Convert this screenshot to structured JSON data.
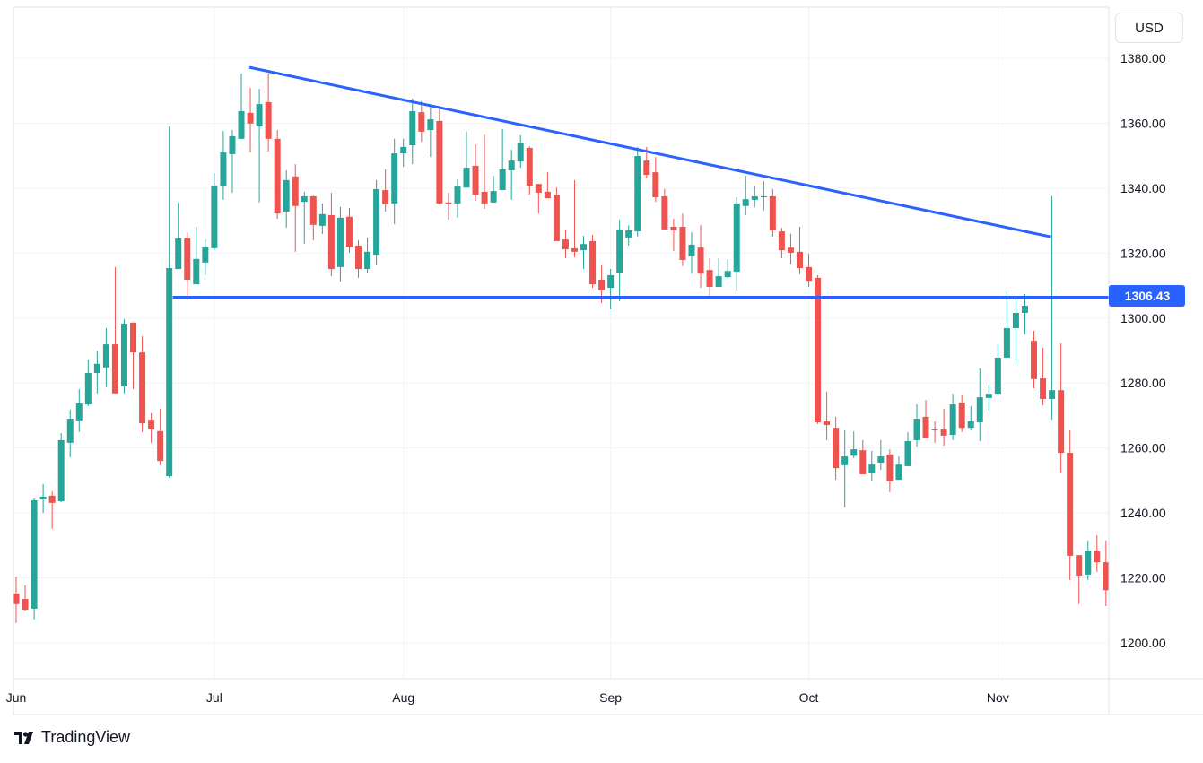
{
  "currency_button": "USD",
  "branding": "TradingView",
  "colors": {
    "up": "#26a69a",
    "down": "#ef5350",
    "drawing": "#2962ff",
    "grid": "#f0f3fa"
  },
  "chart_data": {
    "type": "candlestick",
    "ylim": [
      1190,
      1385
    ],
    "y_ticks": [
      "1200.00",
      "1220.00",
      "1240.00",
      "1260.00",
      "1280.00",
      "1300.00",
      "1320.00",
      "1340.00",
      "1360.00",
      "1380.00"
    ],
    "x_ticks": [
      {
        "label": "Jun",
        "candle": 0
      },
      {
        "label": "Jul",
        "candle": 22
      },
      {
        "label": "Aug",
        "candle": 43
      },
      {
        "label": "Sep",
        "candle": 66
      },
      {
        "label": "Oct",
        "candle": 88
      },
      {
        "label": "Nov",
        "candle": 109
      }
    ],
    "grid": true,
    "ohlc_fields": [
      "open",
      "high",
      "low",
      "close"
    ],
    "candles": [
      [
        1215.2,
        1220.4,
        1206.1,
        1211.9
      ],
      [
        1213.5,
        1217.7,
        1209.9,
        1210.2
      ],
      [
        1210.5,
        1244.7,
        1207.2,
        1243.9
      ],
      [
        1244.2,
        1248.9,
        1240.0,
        1245.0
      ],
      [
        1245.3,
        1246.6,
        1235.1,
        1243.1
      ],
      [
        1243.6,
        1264.6,
        1243.3,
        1262.4
      ],
      [
        1261.6,
        1271.8,
        1257.1,
        1269.0
      ],
      [
        1268.5,
        1278.1,
        1264.9,
        1273.7
      ],
      [
        1273.4,
        1287.2,
        1272.9,
        1283.1
      ],
      [
        1283.1,
        1290.0,
        1276.8,
        1285.9
      ],
      [
        1284.8,
        1296.9,
        1278.7,
        1291.9
      ],
      [
        1291.9,
        1315.7,
        1276.8,
        1276.8
      ],
      [
        1279.0,
        1299.7,
        1276.8,
        1298.3
      ],
      [
        1298.6,
        1298.6,
        1278.1,
        1289.4
      ],
      [
        1289.4,
        1294.4,
        1264.9,
        1267.6
      ],
      [
        1268.7,
        1270.7,
        1261.6,
        1265.7
      ],
      [
        1265.2,
        1272.1,
        1254.7,
        1256.0
      ],
      [
        1251.3,
        1359.0,
        1250.8,
        1315.4
      ],
      [
        1315.1,
        1335.6,
        1315.1,
        1324.5
      ],
      [
        1324.5,
        1326.4,
        1305.7,
        1311.8
      ],
      [
        1310.4,
        1328.1,
        1310.4,
        1318.2
      ],
      [
        1317.1,
        1324.2,
        1313.2,
        1321.8
      ],
      [
        1321.5,
        1344.7,
        1320.9,
        1340.8
      ],
      [
        1340.5,
        1357.6,
        1336.4,
        1351.0
      ],
      [
        1350.5,
        1357.9,
        1338.6,
        1356.0
      ],
      [
        1355.2,
        1375.3,
        1355.2,
        1363.7
      ],
      [
        1363.2,
        1370.9,
        1351.0,
        1359.9
      ],
      [
        1359.0,
        1370.6,
        1335.6,
        1365.9
      ],
      [
        1366.5,
        1375.3,
        1351.3,
        1355.2
      ],
      [
        1355.2,
        1357.9,
        1330.6,
        1332.2
      ],
      [
        1332.8,
        1345.5,
        1327.8,
        1342.5
      ],
      [
        1343.6,
        1347.4,
        1320.4,
        1334.5
      ],
      [
        1335.8,
        1338.9,
        1322.9,
        1337.5
      ],
      [
        1337.5,
        1337.8,
        1324.0,
        1328.7
      ],
      [
        1328.4,
        1335.3,
        1325.9,
        1332.0
      ],
      [
        1331.7,
        1338.6,
        1312.9,
        1315.1
      ],
      [
        1315.7,
        1334.2,
        1311.3,
        1330.9
      ],
      [
        1331.2,
        1333.9,
        1320.1,
        1322.0
      ],
      [
        1322.3,
        1324.0,
        1312.4,
        1315.1
      ],
      [
        1315.1,
        1324.8,
        1314.0,
        1320.4
      ],
      [
        1319.5,
        1342.5,
        1316.2,
        1339.7
      ],
      [
        1339.4,
        1345.8,
        1332.8,
        1335.0
      ],
      [
        1335.3,
        1355.2,
        1328.9,
        1350.7
      ],
      [
        1350.7,
        1355.2,
        1346.6,
        1352.7
      ],
      [
        1353.2,
        1367.6,
        1347.4,
        1363.7
      ],
      [
        1363.4,
        1366.8,
        1354.3,
        1357.4
      ],
      [
        1357.9,
        1365.1,
        1349.6,
        1361.2
      ],
      [
        1360.7,
        1364.8,
        1335.0,
        1335.3
      ],
      [
        1335.6,
        1338.6,
        1330.3,
        1335.0
      ],
      [
        1335.3,
        1342.7,
        1330.9,
        1340.5
      ],
      [
        1340.2,
        1357.4,
        1340.2,
        1346.3
      ],
      [
        1346.9,
        1353.5,
        1336.1,
        1338.0
      ],
      [
        1338.9,
        1356.5,
        1333.6,
        1335.3
      ],
      [
        1335.6,
        1343.8,
        1335.6,
        1339.1
      ],
      [
        1339.4,
        1358.2,
        1339.4,
        1345.8
      ],
      [
        1345.5,
        1351.8,
        1336.4,
        1348.5
      ],
      [
        1348.2,
        1356.3,
        1346.3,
        1354.0
      ],
      [
        1352.4,
        1352.9,
        1338.0,
        1340.8
      ],
      [
        1341.3,
        1341.3,
        1332.2,
        1338.6
      ],
      [
        1338.9,
        1344.9,
        1336.9,
        1336.9
      ],
      [
        1338.0,
        1340.2,
        1323.7,
        1323.7
      ],
      [
        1324.2,
        1327.3,
        1318.4,
        1321.2
      ],
      [
        1321.5,
        1342.5,
        1318.7,
        1320.4
      ],
      [
        1320.9,
        1325.3,
        1315.1,
        1322.8
      ],
      [
        1323.7,
        1325.6,
        1309.3,
        1310.4
      ],
      [
        1311.8,
        1316.2,
        1304.6,
        1308.5
      ],
      [
        1309.3,
        1315.1,
        1302.7,
        1313.2
      ],
      [
        1314.0,
        1330.3,
        1305.2,
        1327.3
      ],
      [
        1324.8,
        1328.6,
        1322.3,
        1327.0
      ],
      [
        1326.7,
        1352.7,
        1325.1,
        1349.9
      ],
      [
        1348.5,
        1352.7,
        1343.0,
        1344.1
      ],
      [
        1344.9,
        1349.6,
        1335.8,
        1337.2
      ],
      [
        1337.5,
        1339.7,
        1327.3,
        1327.3
      ],
      [
        1328.1,
        1330.6,
        1320.6,
        1327.0
      ],
      [
        1328.1,
        1332.2,
        1316.0,
        1317.9
      ],
      [
        1319.0,
        1326.4,
        1313.7,
        1322.6
      ],
      [
        1321.7,
        1328.6,
        1309.3,
        1313.7
      ],
      [
        1314.8,
        1318.4,
        1306.6,
        1309.6
      ],
      [
        1309.6,
        1318.4,
        1309.6,
        1312.9
      ],
      [
        1312.6,
        1318.2,
        1312.4,
        1314.5
      ],
      [
        1314.3,
        1337.2,
        1308.2,
        1335.3
      ],
      [
        1334.5,
        1343.8,
        1331.7,
        1336.6
      ],
      [
        1336.4,
        1340.8,
        1334.2,
        1337.5
      ],
      [
        1337.2,
        1342.2,
        1333.1,
        1337.5
      ],
      [
        1337.5,
        1339.7,
        1325.1,
        1327.0
      ],
      [
        1326.7,
        1327.8,
        1318.4,
        1320.9
      ],
      [
        1321.7,
        1325.9,
        1316.5,
        1320.1
      ],
      [
        1320.4,
        1328.1,
        1313.5,
        1315.4
      ],
      [
        1315.7,
        1319.8,
        1309.6,
        1311.5
      ],
      [
        1312.4,
        1313.2,
        1267.4,
        1267.9
      ],
      [
        1268.2,
        1277.3,
        1262.4,
        1267.1
      ],
      [
        1266.2,
        1269.6,
        1250.2,
        1253.8
      ],
      [
        1254.7,
        1265.4,
        1241.7,
        1257.4
      ],
      [
        1257.6,
        1265.1,
        1256.9,
        1259.6
      ],
      [
        1259.3,
        1262.4,
        1251.9,
        1251.9
      ],
      [
        1252.2,
        1259.1,
        1250.0,
        1254.9
      ],
      [
        1255.5,
        1262.4,
        1253.3,
        1257.4
      ],
      [
        1258.0,
        1259.6,
        1246.4,
        1249.7
      ],
      [
        1250.2,
        1257.4,
        1250.2,
        1254.9
      ],
      [
        1254.4,
        1264.9,
        1254.4,
        1262.1
      ],
      [
        1262.4,
        1273.4,
        1260.4,
        1269.0
      ],
      [
        1269.6,
        1274.8,
        1263.0,
        1263.0
      ],
      [
        1265.7,
        1268.2,
        1261.6,
        1265.4
      ],
      [
        1265.7,
        1272.1,
        1260.7,
        1263.8
      ],
      [
        1264.0,
        1276.7,
        1262.4,
        1273.4
      ],
      [
        1274.0,
        1276.5,
        1264.9,
        1266.2
      ],
      [
        1266.2,
        1272.9,
        1265.4,
        1268.2
      ],
      [
        1267.9,
        1284.5,
        1262.1,
        1275.6
      ],
      [
        1275.4,
        1279.5,
        1271.5,
        1276.7
      ],
      [
        1276.7,
        1291.9,
        1275.9,
        1287.8
      ],
      [
        1287.8,
        1308.2,
        1287.8,
        1296.9
      ],
      [
        1296.9,
        1306.8,
        1285.9,
        1301.6
      ],
      [
        1301.6,
        1307.4,
        1295.0,
        1303.8
      ],
      [
        1293.0,
        1296.1,
        1278.4,
        1281.2
      ],
      [
        1281.4,
        1290.8,
        1273.2,
        1275.1
      ],
      [
        1275.1,
        1337.5,
        1268.7,
        1277.8
      ],
      [
        1277.8,
        1292.2,
        1252.4,
        1258.5
      ],
      [
        1258.5,
        1265.4,
        1219.3,
        1226.8
      ],
      [
        1227.0,
        1227.0,
        1211.9,
        1220.7
      ],
      [
        1221.0,
        1231.5,
        1219.3,
        1228.4
      ],
      [
        1228.4,
        1233.1,
        1221.8,
        1224.8
      ],
      [
        1224.8,
        1231.5,
        1211.3,
        1216.2
      ]
    ],
    "drawings": {
      "support_line": {
        "price": 1306.43,
        "price_label": "1306.43",
        "start_candle": 17
      },
      "trend_line": {
        "start": {
          "candle": 25.9,
          "price": 1377.2
        },
        "end": {
          "candle": 114.9,
          "price": 1325.0
        }
      }
    }
  }
}
